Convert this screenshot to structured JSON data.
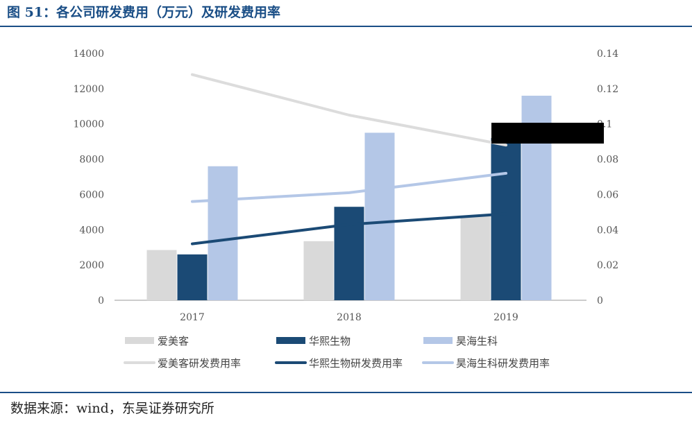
{
  "title": "图 51：各公司研发费用（万元）及研发费用率",
  "source": "数据来源：wind，东吴证券研究所",
  "colors": {
    "brand": "#1a4e86",
    "amk_bar": "#d9d9d9",
    "hx_bar": "#1b4a75",
    "wh_bar": "#b4c7e7",
    "amk_line": "#dcdcdc",
    "hx_line": "#1b4a75",
    "wh_line": "#b4c7e7",
    "redaction": "#000000"
  },
  "chart_data": {
    "type": "bar",
    "categories": [
      "2017",
      "2018",
      "2019"
    ],
    "ylim": [
      0,
      14000
    ],
    "y2lim": [
      0,
      0.14
    ],
    "yticks": [
      "0",
      "2000",
      "4000",
      "6000",
      "8000",
      "10000",
      "12000",
      "14000"
    ],
    "y2ticks": [
      "0",
      "0.02",
      "0.04",
      "0.06",
      "0.08",
      "0.1",
      "0.12",
      "0.14"
    ],
    "series": [
      {
        "name": "爱美客",
        "kind": "bar",
        "axis": "left",
        "values": [
          2850,
          3350,
          4800
        ]
      },
      {
        "name": "华熙生物",
        "kind": "bar",
        "axis": "left",
        "values": [
          2600,
          5300,
          9200
        ]
      },
      {
        "name": "昊海生科",
        "kind": "bar",
        "axis": "left",
        "values": [
          7600,
          9500,
          11600
        ]
      },
      {
        "name": "爱美客研发费用率",
        "kind": "line",
        "axis": "right",
        "values": [
          0.128,
          0.105,
          0.088
        ]
      },
      {
        "name": "华熙生物研发费用率",
        "kind": "line",
        "axis": "right",
        "values": [
          0.032,
          0.043,
          0.049
        ]
      },
      {
        "name": "昊海生科研发费用率",
        "kind": "line",
        "axis": "right",
        "values": [
          0.056,
          0.061,
          0.072
        ]
      }
    ],
    "legend": "bottom",
    "grid": false
  }
}
